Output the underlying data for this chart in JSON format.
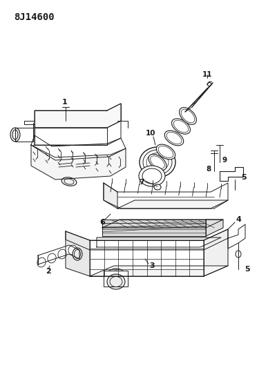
{
  "title_text": "8J14600",
  "background_color": "#ffffff",
  "line_color": "#1a1a1a",
  "fig_width": 4.01,
  "fig_height": 5.33,
  "dpi": 100,
  "title_fontsize": 10,
  "label_fontsize": 7.5
}
